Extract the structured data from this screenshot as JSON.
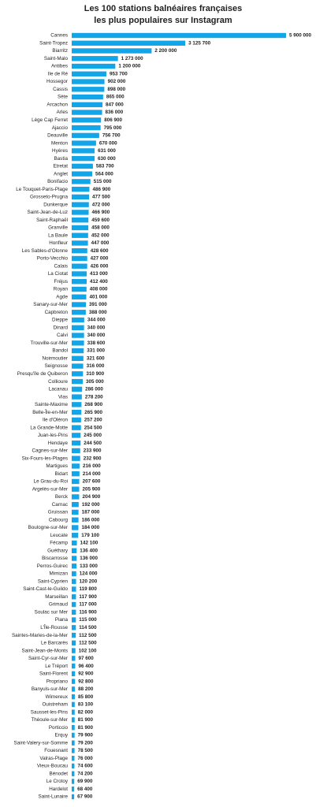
{
  "chart_data": {
    "type": "barh",
    "title": [
      "Les 100 stations balnéaires françaises",
      "les plus populaires sur Instagram"
    ],
    "color": "#12a5e8",
    "categories": [
      "Cannes",
      "Saint-Tropez",
      "Biarritz",
      "Saint-Malo",
      "Antibes",
      "Ile de Ré",
      "Hossegor",
      "Cassis",
      "Sète",
      "Arcachon",
      "Arles",
      "Lège Cap Ferret",
      "Ajaccio",
      "Deauville",
      "Menton",
      "Hyères",
      "Bastia",
      "Etretat",
      "Anglet",
      "Bonifacio",
      "Le Touquet-Paris-Plage",
      "Grosseto-Prugna",
      "Dunkerque",
      "Saint-Jean-de-Luz",
      "Saint-Raphaël",
      "Granville",
      "La Baule",
      "Honfleur",
      "Les Sables-d'Olonne",
      "Porto-Vecchio",
      "Calais",
      "La Ciotat",
      "Fréjus",
      "Royan",
      "Agde",
      "Sanary-sur-Mer",
      "Capbreton",
      "Dieppe",
      "Dinard",
      "Calvi",
      "Trouville-sur-Mer",
      "Bandol",
      "Noirmoutier",
      "Seignosse",
      "Presqu'île de Quiberon",
      "Collioure",
      "Lacanau",
      "Vias",
      "Sainte-Maxime",
      "Belle-Île-en-Mer",
      "Ile d'Oléron",
      "La Grande-Motte",
      "Juan-les-Pins",
      "Hendaye",
      "Cagnes-sur-Mer",
      "Six-Fours-les-Plages",
      "Martigues",
      "Bidart",
      "Le Grau-du-Roi",
      "Argelès-sur-Mer",
      "Berck",
      "Carnac",
      "Gruissan",
      "Cabourg",
      "Boulogne-sur-Mer",
      "Leucate",
      "Fécamp",
      "Guéthary",
      "Biscarrosse",
      "Perros-Guirec",
      "Mimizan",
      "Saint-Cyprien",
      "Saint-Cast-le-Guildo",
      "Marseillan",
      "Grimaud",
      "Soulac sur Mer",
      "Piana",
      "L'Île-Rousse",
      "Saintes-Maries-de-la-Mer",
      "Le Barcarès",
      "Saint-Jean-de-Monts",
      "Saint-Cyr-sur-Mer",
      "Le Tréport",
      "Saint-Florent",
      "Propriano",
      "Banyuls-sur-Mer",
      "Wimereux",
      "Ouistreham",
      "Sausset-les-Pins",
      "Théoule-sur-Mer",
      "Porticcio",
      "Erquy",
      "Saint-Valery-sur-Somme",
      "Fouesnant",
      "Valras-Plage",
      "Vieux-Boucau",
      "Bénodet",
      "Le Crotoy",
      "Hardelot",
      "Saint-Lunaire"
    ],
    "values": [
      5900000,
      3125700,
      2200000,
      1273000,
      1200000,
      953700,
      902000,
      898000,
      865000,
      847000,
      836000,
      806900,
      795000,
      756700,
      670000,
      631000,
      630000,
      583700,
      564000,
      515000,
      486900,
      477500,
      472000,
      466900,
      459600,
      458000,
      452000,
      447000,
      428600,
      427000,
      426000,
      413000,
      412400,
      408000,
      401000,
      391000,
      388000,
      344000,
      340000,
      340000,
      338600,
      331000,
      321600,
      316000,
      310900,
      305000,
      286000,
      278200,
      268900,
      265900,
      257200,
      254500,
      245000,
      244500,
      233900,
      232900,
      216000,
      214000,
      207600,
      205900,
      204900,
      192000,
      187000,
      186000,
      184000,
      179100,
      142100,
      136400,
      136000,
      133000,
      124000,
      120200,
      119800,
      117900,
      117000,
      116900,
      115000,
      114500,
      112500,
      112500,
      102100,
      97600,
      96400,
      92900,
      92800,
      88200,
      85800,
      83100,
      82000,
      81900,
      81900,
      79900,
      79200,
      78500,
      76000,
      74600,
      74200,
      69900,
      68400,
      67900
    ],
    "value_labels": [
      "5 900 000",
      "3 125 700",
      "2 200 000",
      "1 273 000",
      "1 200 000",
      "953 700",
      "902 000",
      "898 000",
      "865 000",
      "847 000",
      "836 000",
      "806 900",
      "795 000",
      "756 700",
      "670 000",
      "631 000",
      "630 000",
      "583 700",
      "564 000",
      "515 000",
      "486 900",
      "477 500",
      "472 000",
      "466 900",
      "459 600",
      "458 000",
      "452 000",
      "447 000",
      "428 600",
      "427 000",
      "426 000",
      "413 000",
      "412 400",
      "408 000",
      "401 000",
      "391 000",
      "388 000",
      "344 000",
      "340 000",
      "340 000",
      "338 600",
      "331 000",
      "321 600",
      "316 000",
      "310 900",
      "305 000",
      "286 000",
      "278 200",
      "268 900",
      "265 900",
      "257 200",
      "254 500",
      "245 000",
      "244 500",
      "233 900",
      "232 900",
      "216 000",
      "214 000",
      "207 600",
      "205 900",
      "204 900",
      "192 000",
      "187 000",
      "186 000",
      "184 000",
      "179 100",
      "142 100",
      "136 400",
      "136 000",
      "133 000",
      "124 000",
      "120 200",
      "119 800",
      "117 900",
      "117 000",
      "116 900",
      "115 000",
      "114 500",
      "112 500",
      "112 500",
      "102 100",
      "97 600",
      "96 400",
      "92 900",
      "92 800",
      "88 200",
      "85 800",
      "83 100",
      "82 000",
      "81 900",
      "81 900",
      "79 900",
      "79 200",
      "78 500",
      "76 000",
      "74 600",
      "74 200",
      "69 900",
      "68 400",
      "67 900"
    ]
  }
}
